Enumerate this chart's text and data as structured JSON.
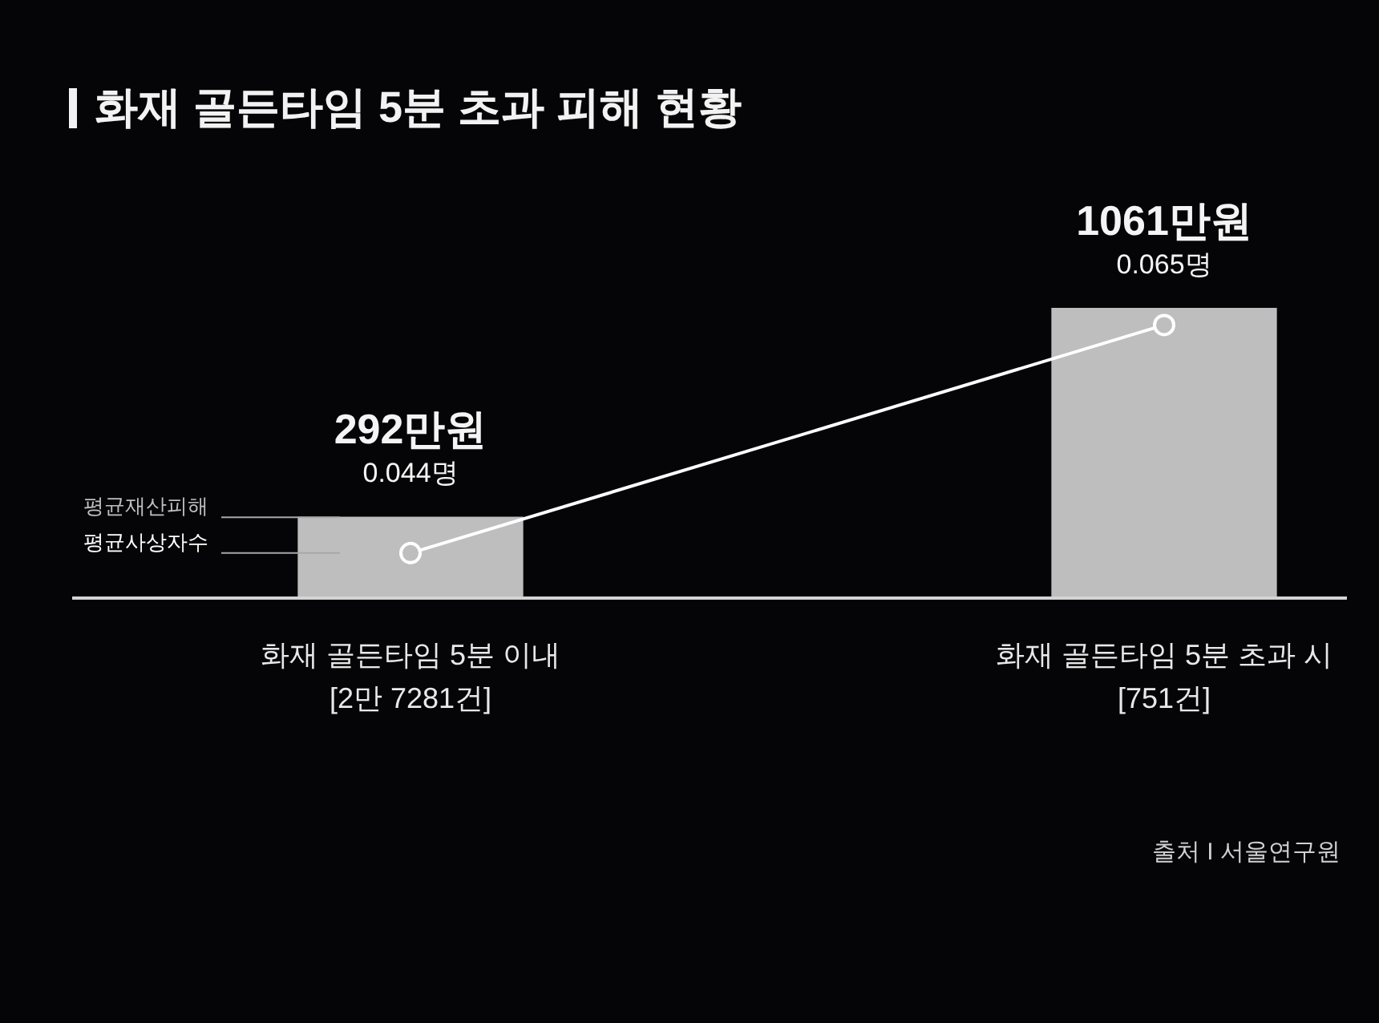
{
  "chart_data": {
    "type": "bar",
    "title": "화재 골든타임 5분 초과 피해 현황",
    "categories": [
      "화재 골든타임 5분 이내\n[2만 7281건]",
      "화재 골든타임 5분 초과 시\n[751건]"
    ],
    "series": [
      {
        "name": "평균재산피해",
        "color": "#bebebe",
        "values": [
          292,
          1061
        ],
        "value_labels": [
          "292만원",
          "1061만원"
        ]
      },
      {
        "name": "평균사상자수",
        "type": "line",
        "axis": "y2",
        "color": "#ffffff",
        "values": [
          0.044,
          0.065
        ],
        "value_labels": [
          "0.044명",
          "0.065명"
        ]
      }
    ],
    "tick_labels": "x",
    "marker": "circle",
    "annotations": [
      "출처 I 서울연구원"
    ]
  }
}
